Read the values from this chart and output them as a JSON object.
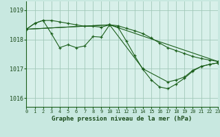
{
  "background_color": "#c8e8e0",
  "plot_bg_color": "#d8f0ea",
  "grid_color": "#a0c8b8",
  "line_color": "#1a5e1a",
  "title": "Graphe pression niveau de la mer (hPa)",
  "xlim": [
    0,
    23
  ],
  "ylim": [
    1015.7,
    1019.3
  ],
  "yticks": [
    1016,
    1017,
    1018,
    1019
  ],
  "xticks": [
    0,
    1,
    2,
    3,
    4,
    5,
    6,
    7,
    8,
    9,
    10,
    11,
    12,
    13,
    14,
    15,
    16,
    17,
    18,
    19,
    20,
    21,
    22,
    23
  ],
  "series": [
    {
      "x": [
        0,
        1,
        2,
        3,
        4,
        5,
        6,
        7,
        8,
        9,
        10,
        11,
        12,
        13,
        14,
        15,
        16,
        17,
        18,
        19,
        20,
        21,
        22,
        23
      ],
      "y": [
        1018.35,
        1018.55,
        1018.65,
        1018.65,
        1018.6,
        1018.55,
        1018.5,
        1018.45,
        1018.45,
        1018.42,
        1018.5,
        1018.47,
        1018.38,
        1018.3,
        1018.2,
        1018.05,
        1017.88,
        1017.72,
        1017.62,
        1017.52,
        1017.42,
        1017.35,
        1017.3,
        1017.25
      ]
    },
    {
      "x": [
        0,
        1,
        2,
        3,
        4,
        5,
        6,
        7,
        8,
        9,
        10,
        11,
        12,
        13,
        14,
        15,
        16,
        17,
        18,
        19,
        20,
        21,
        22,
        23
      ],
      "y": [
        1018.35,
        1018.55,
        1018.65,
        1018.2,
        1017.72,
        1017.82,
        1017.72,
        1017.78,
        1018.1,
        1018.08,
        1018.5,
        1018.42,
        1017.95,
        1017.45,
        1016.98,
        1016.62,
        1016.38,
        1016.32,
        1016.48,
        1016.68,
        1016.92,
        1017.08,
        1017.15,
        1017.2
      ]
    },
    {
      "x": [
        0,
        10,
        23
      ],
      "y": [
        1018.35,
        1018.5,
        1017.25
      ]
    },
    {
      "x": [
        0,
        10,
        14,
        17,
        18,
        19,
        20,
        21,
        22,
        23
      ],
      "y": [
        1018.35,
        1018.5,
        1017.0,
        1016.55,
        1016.62,
        1016.72,
        1016.95,
        1017.08,
        1017.15,
        1017.2
      ]
    }
  ]
}
